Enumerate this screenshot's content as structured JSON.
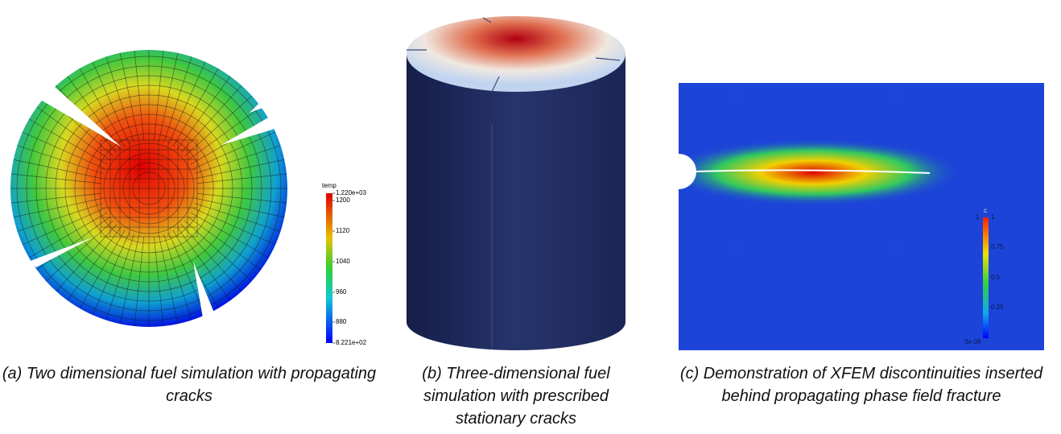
{
  "panels": [
    {
      "caption": "(a) Two dimensional fuel simulation with propagating cracks",
      "colorbar": {
        "title": "temp",
        "labels": [
          "1.220e+03",
          "1200",
          "1120",
          "1040",
          "960",
          "880",
          "8.221e+02"
        ]
      }
    },
    {
      "caption": "(b) Three-dimensional fuel simulation with prescribed stationary cracks"
    },
    {
      "caption": "(c) Demonstration of XFEM discontinuities inserted behind propagating phase field fracture",
      "colorbar": {
        "title": "c",
        "labels": [
          "1",
          "1",
          "0.75",
          "0.5",
          "0.25",
          "3e-06"
        ]
      }
    }
  ]
}
